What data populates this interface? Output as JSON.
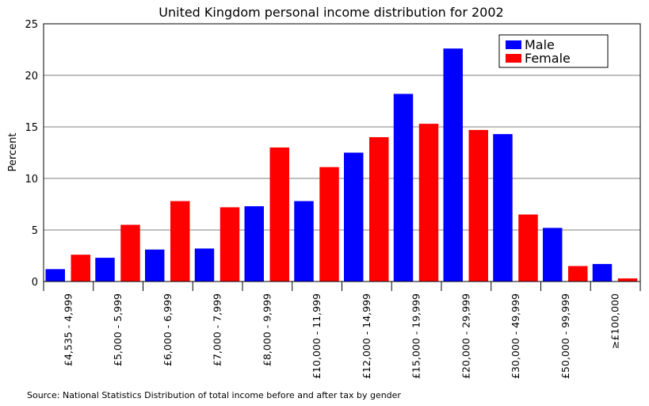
{
  "chart_data": {
    "type": "bar",
    "title": "United Kingdom personal income distribution for 2002",
    "ylabel": "Percent",
    "xlabel": "",
    "ylim": [
      0,
      25
    ],
    "yticks": [
      0,
      5,
      10,
      15,
      20,
      25
    ],
    "grid": true,
    "legend_position": "top-right",
    "categories": [
      "£4,535 - 4,999",
      "£5,000 - 5,999",
      "£6,000 - 6,999",
      "£7,000 - 7,999",
      "£8,000 - 9,999",
      "£10,000 - 11,999",
      "£12,000 - 14,999",
      "£15,000 - 19,999",
      "£20,000 - 29,999",
      "£30,000 - 49,999",
      "£50,000 - 99,999",
      "≥£100,000"
    ],
    "series": [
      {
        "name": "Male",
        "color": "#0000ff",
        "values": [
          1.2,
          2.3,
          3.1,
          3.2,
          7.3,
          7.8,
          12.5,
          18.2,
          22.6,
          14.3,
          5.2,
          1.7
        ]
      },
      {
        "name": "Female",
        "color": "#ff0000",
        "values": [
          2.6,
          5.5,
          7.8,
          7.2,
          13.0,
          11.1,
          14.0,
          15.3,
          14.7,
          6.5,
          1.5,
          0.3
        ]
      }
    ]
  },
  "source": "Source: National Statistics Distribution of total income before and after tax by gender"
}
